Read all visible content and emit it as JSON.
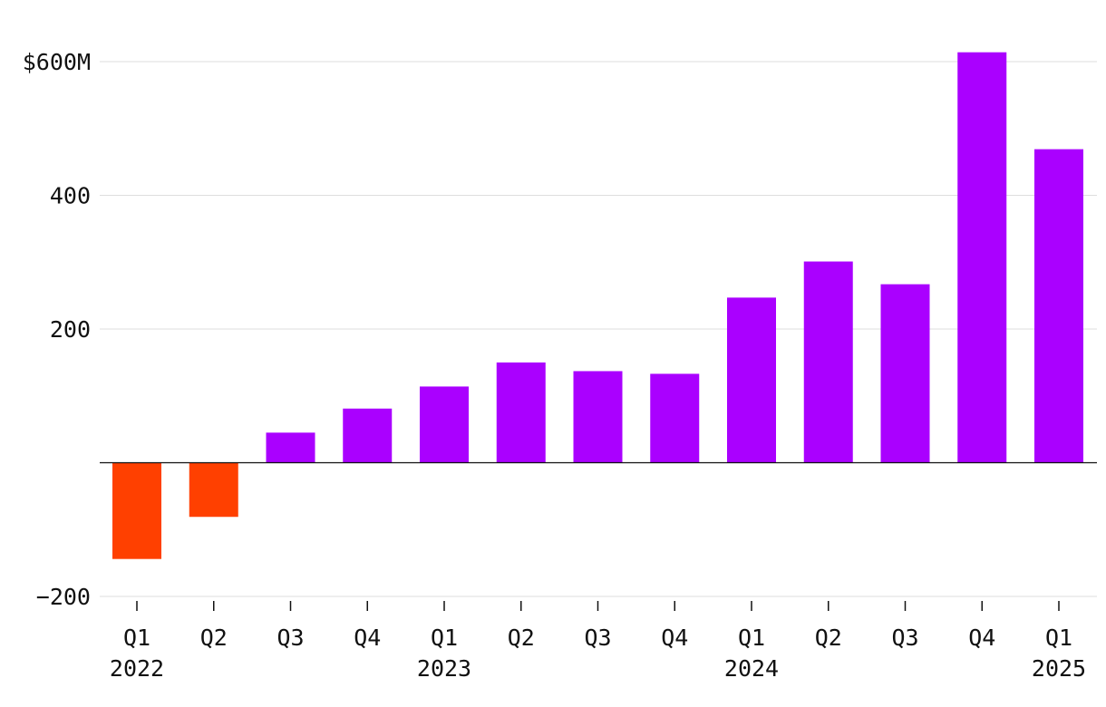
{
  "chart_data": {
    "type": "bar",
    "categories": [
      "Q1 2022",
      "Q2 2022",
      "Q3 2022",
      "Q4 2022",
      "Q1 2023",
      "Q2 2023",
      "Q3 2023",
      "Q4 2023",
      "Q1 2024",
      "Q2 2024",
      "Q3 2024",
      "Q4 2024",
      "Q1 2025"
    ],
    "quarter_labels": [
      "Q1",
      "Q2",
      "Q3",
      "Q4",
      "Q1",
      "Q2",
      "Q3",
      "Q4",
      "Q1",
      "Q2",
      "Q3",
      "Q4",
      "Q1"
    ],
    "year_labels": [
      "2022",
      "",
      "",
      "",
      "2023",
      "",
      "",
      "",
      "2024",
      "",
      "",
      "",
      "2025"
    ],
    "values": [
      -144,
      -81,
      45,
      81,
      114,
      150,
      137,
      133,
      247,
      301,
      267,
      614,
      469
    ],
    "title": "",
    "xlabel": "",
    "ylabel": "",
    "ylim": [
      -200,
      600
    ],
    "y_ticks": [
      -200,
      200,
      400,
      600
    ],
    "y_tick_labels": [
      "−200",
      "200",
      "400",
      "$600M"
    ],
    "grid": true,
    "colors": {
      "positive": "#aa00ff",
      "negative": "#ff4000"
    }
  }
}
